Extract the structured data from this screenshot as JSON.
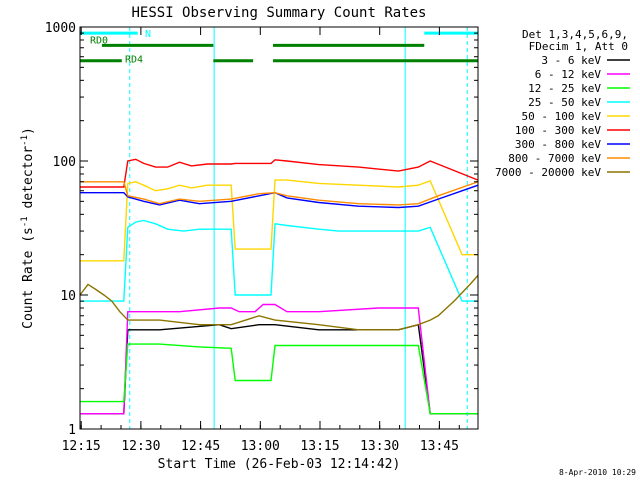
{
  "chart_data": {
    "type": "line",
    "title": "HESSI Observing Summary Count Rates",
    "xlabel": "Start Time (26-Feb-03 12:14:42)",
    "ylabel": "Count Rate (s⁻¹ detector⁻¹)",
    "ylabel_base": "Count Rate (s",
    "ylabel_mid": " detector",
    "ylabel_end": ")",
    "ylabel_sup": "-1",
    "yscale": "log",
    "ylim": [
      1,
      1000
    ],
    "xlim_minutes": [
      0,
      100
    ],
    "x_ticks": [
      "12:15",
      "12:30",
      "12:45",
      "13:00",
      "13:15",
      "13:30",
      "13:45"
    ],
    "x_tick_minutes": [
      0.3,
      15.3,
      30.3,
      45.3,
      60.3,
      75.3,
      90.3
    ],
    "y_ticks": [
      "1",
      "10",
      "100",
      "1000"
    ],
    "y_tick_values": [
      1,
      10,
      100,
      1000
    ],
    "legend_header": [
      "Det 1,3,4,5,6,9,",
      "FDecim 1, Att 0"
    ],
    "legend_position": "right",
    "series": [
      {
        "name": "3 - 6 keV",
        "color": "#000000",
        "x": [
          0,
          11,
          12,
          20,
          35,
          38,
          45,
          49,
          60,
          70,
          80,
          85,
          88,
          96,
          100
        ],
        "y": [
          1.3,
          1.3,
          5.5,
          5.5,
          6,
          5.6,
          6,
          6,
          5.5,
          5.5,
          5.5,
          6,
          1.3,
          1.3,
          1.3
        ]
      },
      {
        "name": "6 - 12 keV",
        "color": "#ff00ff",
        "x": [
          0,
          11,
          12,
          25,
          35,
          38,
          40,
          44,
          46,
          49,
          52,
          60,
          75,
          85,
          88,
          90,
          100
        ],
        "y": [
          1.3,
          1.3,
          7.5,
          7.5,
          8,
          8,
          7.5,
          7.5,
          8.5,
          8.5,
          7.5,
          7.5,
          8,
          8,
          1.3,
          1.3,
          1.3
        ]
      },
      {
        "name": "12 - 25 keV",
        "color": "#00ff00",
        "x": [
          0,
          11,
          12,
          20,
          30,
          38,
          39,
          48,
          49,
          60,
          75,
          85,
          88,
          92,
          94,
          100
        ],
        "y": [
          1.6,
          1.6,
          4.3,
          4.3,
          4.1,
          4,
          2.3,
          2.3,
          4.2,
          4.2,
          4.2,
          4.2,
          1.3,
          1.3,
          1.3,
          1.3
        ]
      },
      {
        "name": "25 - 50 keV",
        "color": "#00ffff",
        "x": [
          0,
          11,
          12,
          14,
          16,
          19,
          22,
          26,
          30,
          34,
          38,
          39,
          48,
          49,
          52,
          60,
          65,
          75,
          85,
          88,
          96,
          100
        ],
        "y": [
          9,
          9,
          32,
          35,
          36,
          34,
          31,
          30,
          31,
          31,
          31,
          10,
          10,
          34,
          33,
          31,
          30,
          30,
          30,
          32,
          9,
          9
        ]
      },
      {
        "name": "50 - 100 keV",
        "color": "#ffd700",
        "x": [
          0,
          11,
          12,
          14,
          16,
          19,
          22,
          25,
          28,
          32,
          38,
          39,
          48,
          49,
          52,
          60,
          70,
          80,
          85,
          88,
          96,
          100
        ],
        "y": [
          18,
          18,
          68,
          70,
          66,
          60,
          62,
          66,
          63,
          66,
          66,
          22,
          22,
          72,
          72,
          68,
          66,
          64,
          66,
          71,
          20,
          20
        ]
      },
      {
        "name": "100 - 300 keV",
        "color": "#ff0000",
        "x": [
          0,
          11,
          12,
          14,
          16,
          19,
          22,
          25,
          28,
          32,
          38,
          39,
          48,
          49,
          52,
          60,
          70,
          80,
          85,
          88,
          100
        ],
        "y": [
          64,
          64,
          100,
          103,
          96,
          90,
          90,
          98,
          92,
          95,
          95,
          96,
          96,
          102,
          100,
          94,
          90,
          84,
          90,
          100,
          72
        ]
      },
      {
        "name": "300 - 800 keV",
        "color": "#0000ff",
        "x": [
          0,
          11,
          12,
          16,
          20,
          25,
          30,
          38,
          45,
          49,
          52,
          60,
          70,
          80,
          85,
          90,
          100
        ],
        "y": [
          58,
          58,
          54,
          50,
          47,
          51,
          48,
          50,
          55,
          58,
          53,
          49,
          46,
          45,
          46,
          52,
          66
        ]
      },
      {
        "name": "800 - 7000 keV",
        "color": "#ff8c00",
        "x": [
          0,
          11,
          12,
          16,
          20,
          25,
          30,
          38,
          45,
          49,
          52,
          60,
          70,
          80,
          85,
          90,
          100
        ],
        "y": [
          70,
          70,
          55,
          52,
          48,
          52,
          50,
          52,
          57,
          58,
          55,
          51,
          48,
          47,
          48,
          55,
          70
        ]
      },
      {
        "name": "7000 - 20000 keV",
        "color": "#8b7500",
        "x": [
          0,
          2,
          4,
          6,
          8,
          10,
          11,
          12,
          20,
          30,
          38,
          45,
          49,
          60,
          70,
          80,
          85,
          88,
          90,
          94,
          98,
          100
        ],
        "y": [
          10,
          12,
          11,
          10,
          9,
          7.5,
          7,
          6.5,
          6.5,
          6,
          6,
          7,
          6.5,
          6,
          5.5,
          5.5,
          6,
          6.5,
          7,
          9,
          12,
          14
        ]
      }
    ],
    "state_bars": [
      {
        "label": "N",
        "color": "#00ffff",
        "y": 900,
        "segments": [
          [
            0,
            14.5
          ],
          [
            86.5,
            100
          ]
        ]
      },
      {
        "label": "RD0",
        "color": "#008000",
        "y": 730,
        "segments": [
          [
            5.5,
            33.5
          ],
          [
            48.5,
            86.5
          ]
        ]
      },
      {
        "label": "RD4",
        "color": "#008000",
        "y": 560,
        "segments": [
          [
            0,
            10.5
          ],
          [
            33.5,
            43.5
          ],
          [
            48.5,
            100
          ]
        ]
      }
    ],
    "vlines": [
      {
        "x": 12.5,
        "style": "dashed",
        "color": "#00ffff"
      },
      {
        "x": 33.7,
        "style": "solid",
        "color": "#00ffff"
      },
      {
        "x": 81.7,
        "style": "solid",
        "color": "#00ffff"
      },
      {
        "x": 97.3,
        "style": "dashed",
        "color": "#00ffff"
      }
    ],
    "footnote": "8-Apr-2010 10:29"
  }
}
